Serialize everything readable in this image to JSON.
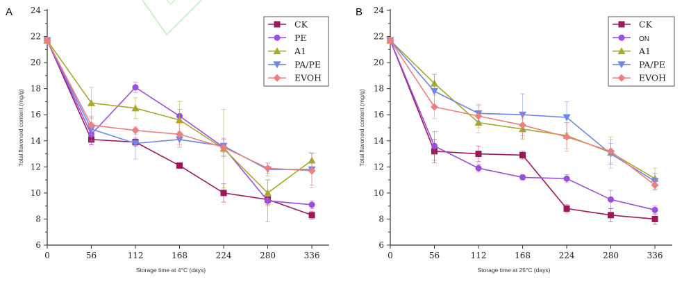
{
  "chart_data": [
    {
      "type": "line",
      "panel_label": "A",
      "title": "",
      "xlabel": "Storage time at 4°C (days)",
      "ylabel": "Total flavonoid content (mg/g)",
      "x": [
        0,
        56,
        112,
        168,
        224,
        280,
        336
      ],
      "x_tick_labels": [
        "0",
        "56",
        "112",
        "168",
        "224",
        "280",
        "336"
      ],
      "xlim": [
        0,
        358
      ],
      "ylim": [
        6,
        24
      ],
      "y_ticks": [
        "6",
        "8",
        "10",
        "12",
        "14",
        "16",
        "18",
        "20",
        "22",
        "24"
      ],
      "legend_position": "top-right",
      "series": [
        {
          "name": "CK",
          "color": "#a0165a",
          "marker": "square",
          "x": [
            0,
            56,
            112,
            168,
            224,
            280,
            336
          ],
          "values": [
            21.7,
            14.1,
            13.9,
            12.1,
            10.0,
            9.5,
            8.3
          ],
          "errors": [
            0.2,
            0.4,
            0.3,
            0.2,
            0.7,
            0.4,
            0.3
          ]
        },
        {
          "name": "PE",
          "color": "#9b4de0",
          "marker": "circle",
          "x": [
            0,
            56,
            112,
            168,
            224,
            280,
            336
          ],
          "values": [
            21.7,
            14.5,
            18.1,
            15.9,
            13.5,
            9.4,
            9.1
          ],
          "errors": [
            0.2,
            0.8,
            0.4,
            0.5,
            0.7,
            1.6,
            0.3
          ]
        },
        {
          "name": "A1",
          "color": "#a8a82a",
          "marker": "triangle-up",
          "x": [
            0,
            56,
            112,
            168,
            224,
            280,
            336
          ],
          "values": [
            21.7,
            16.9,
            16.5,
            15.6,
            13.4,
            10.0,
            12.5
          ],
          "errors": [
            0.2,
            1.2,
            0.8,
            1.4,
            3.0,
            1.0,
            0.6
          ]
        },
        {
          "name": "PA/PE",
          "color": "#6d85e8",
          "marker": "triangle-down",
          "x": [
            0,
            56,
            112,
            168,
            224,
            280,
            336
          ],
          "values": [
            21.7,
            14.9,
            13.8,
            14.1,
            13.6,
            11.8,
            11.8
          ],
          "errors": [
            0.2,
            0.9,
            1.2,
            0.6,
            0.5,
            0.5,
            1.2
          ]
        },
        {
          "name": "EVOH",
          "color": "#ee7f7f",
          "marker": "diamond",
          "x": [
            0,
            56,
            112,
            168,
            224,
            280,
            336
          ],
          "values": [
            21.7,
            15.2,
            14.8,
            14.5,
            13.5,
            11.9,
            11.7
          ],
          "errors": [
            0.2,
            0.7,
            0.3,
            0.8,
            0.6,
            0.4,
            1.3
          ]
        }
      ]
    },
    {
      "type": "line",
      "panel_label": "B",
      "title": "",
      "xlabel": "Storage time at 25°C (days)",
      "ylabel": "Total flavonoid content (mg/g)",
      "x": [
        0,
        56,
        112,
        168,
        224,
        280,
        336
      ],
      "x_tick_labels": [
        "0",
        "56",
        "112",
        "168",
        "224",
        "280",
        "336"
      ],
      "xlim": [
        0,
        358
      ],
      "ylim": [
        6,
        24
      ],
      "y_ticks": [
        "6",
        "8",
        "10",
        "12",
        "14",
        "16",
        "18",
        "20",
        "22",
        "24"
      ],
      "legend_position": "top-right",
      "series": [
        {
          "name": "CK",
          "color": "#a0165a",
          "marker": "square",
          "x": [
            0,
            56,
            112,
            168,
            224,
            280,
            336
          ],
          "values": [
            21.7,
            13.2,
            13.0,
            12.9,
            8.8,
            8.3,
            8.0
          ],
          "errors": [
            0.2,
            0.9,
            0.6,
            0.3,
            0.3,
            0.5,
            0.4
          ]
        },
        {
          "name": "ON",
          "color": "#9b4de0",
          "marker": "circle",
          "x": [
            0,
            56,
            112,
            168,
            224,
            280,
            336
          ],
          "values": [
            21.7,
            13.6,
            11.9,
            11.2,
            11.1,
            9.5,
            8.7
          ],
          "errors": [
            0.2,
            1.1,
            0.3,
            0.2,
            0.3,
            0.7,
            0.3
          ]
        },
        {
          "name": "A1",
          "color": "#a8a82a",
          "marker": "triangle-up",
          "x": [
            0,
            56,
            112,
            168,
            224,
            280,
            336
          ],
          "values": [
            21.7,
            18.4,
            15.4,
            14.9,
            14.4,
            13.1,
            11.1
          ],
          "errors": [
            0.2,
            0.7,
            0.8,
            0.8,
            1.0,
            1.2,
            0.8
          ]
        },
        {
          "name": "PA/PE",
          "color": "#6d85e8",
          "marker": "triangle-down",
          "x": [
            0,
            56,
            112,
            168,
            224,
            280,
            336
          ],
          "values": [
            21.7,
            17.8,
            16.1,
            16.0,
            15.8,
            13.0,
            10.9
          ],
          "errors": [
            0.2,
            1.3,
            0.6,
            1.6,
            1.2,
            0.8,
            0.6
          ]
        },
        {
          "name": "EVOH",
          "color": "#ee7f7f",
          "marker": "diamond",
          "x": [
            0,
            56,
            112,
            168,
            224,
            280,
            336
          ],
          "values": [
            21.7,
            16.6,
            15.9,
            15.2,
            14.3,
            13.2,
            10.6
          ],
          "errors": [
            0.2,
            0.9,
            0.9,
            1.0,
            1.1,
            0.9,
            0.4
          ]
        }
      ]
    }
  ]
}
